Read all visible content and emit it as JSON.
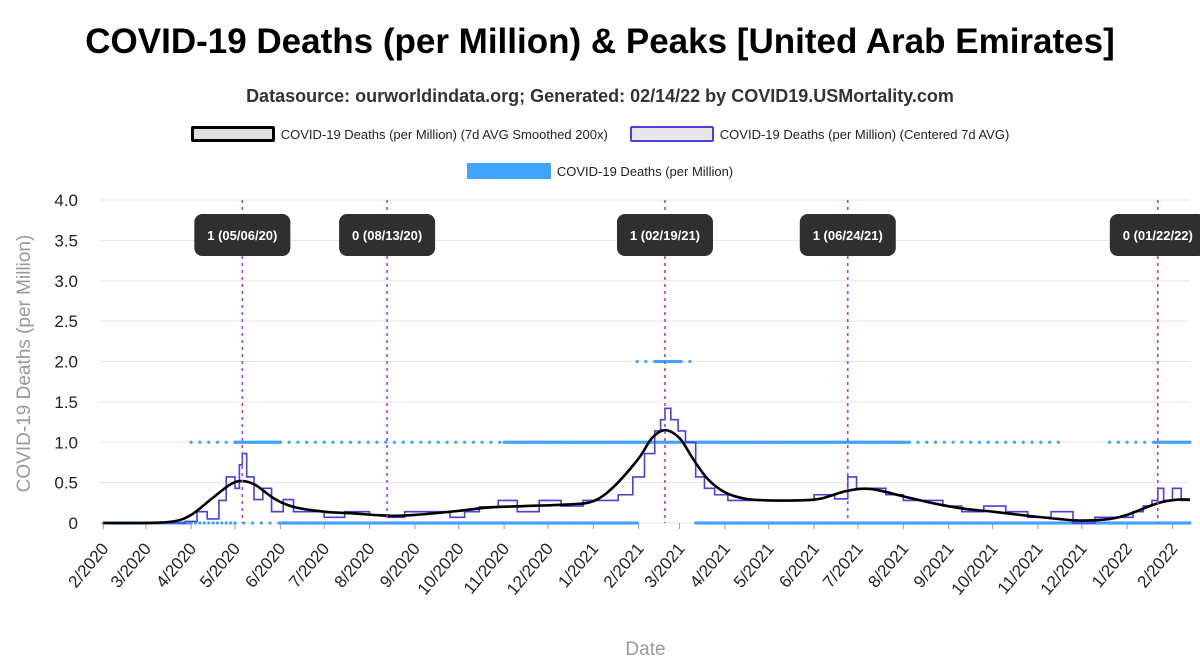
{
  "chart_data": {
    "type": "line",
    "title": "COVID-19 Deaths (per Million) & Peaks [United Arab Emirates]",
    "subtitle": "Datasource: ourworldindata.org; Generated: 02/14/22 by COVID19.USMortality.com",
    "xlabel": "Date",
    "ylabel": "COVID-19 Deaths (per Million)",
    "ylim": [
      0,
      4
    ],
    "yticks": [
      "0",
      "0.5",
      "1.0",
      "1.5",
      "2.0",
      "2.5",
      "3.0",
      "3.5",
      "4.0"
    ],
    "xticks": [
      "2/2020",
      "3/2020",
      "4/2020",
      "5/2020",
      "6/2020",
      "7/2020",
      "8/2020",
      "9/2020",
      "10/2020",
      "11/2020",
      "12/2020",
      "1/2021",
      "2/2021",
      "3/2021",
      "4/2021",
      "5/2021",
      "6/2021",
      "7/2021",
      "8/2021",
      "9/2021",
      "10/2021",
      "11/2021",
      "12/2021",
      "1/2022",
      "2/2022"
    ],
    "xrange": [
      "2020-01-29",
      "2022-02-13"
    ],
    "grid": "horizontal",
    "legend_position": "top",
    "legend": [
      {
        "label": "COVID-19 Deaths (per Million) (7d AVG Smoothed 200x)",
        "style": "line",
        "color": "#000000",
        "fill": "#e0e0e0"
      },
      {
        "label": "COVID-19 Deaths (per Million) (Centered 7d AVG)",
        "style": "line",
        "color": "#4a3fe0",
        "fill": "#e8e8e8"
      },
      {
        "label": "COVID-19 Deaths (per Million)",
        "style": "points",
        "color": "#3fa3ff"
      }
    ],
    "series": [
      {
        "name": "COVID-19 Deaths (per Million) (7d AVG Smoothed 200x)",
        "color": "#000000",
        "x": [
          "2020-02-01",
          "2020-03-01",
          "2020-03-20",
          "2020-04-01",
          "2020-04-15",
          "2020-04-28",
          "2020-05-06",
          "2020-05-15",
          "2020-05-28",
          "2020-06-10",
          "2020-07-01",
          "2020-07-20",
          "2020-08-13",
          "2020-09-01",
          "2020-10-01",
          "2020-10-20",
          "2020-11-15",
          "2020-12-15",
          "2021-01-01",
          "2021-01-15",
          "2021-02-01",
          "2021-02-10",
          "2021-02-19",
          "2021-03-01",
          "2021-03-10",
          "2021-03-20",
          "2021-04-01",
          "2021-04-15",
          "2021-05-01",
          "2021-05-20",
          "2021-06-05",
          "2021-06-24",
          "2021-07-10",
          "2021-08-01",
          "2021-08-20",
          "2021-09-10",
          "2021-10-01",
          "2021-10-25",
          "2021-11-15",
          "2021-12-01",
          "2021-12-20",
          "2022-01-01",
          "2022-01-15",
          "2022-01-25",
          "2022-02-05",
          "2022-02-13"
        ],
        "y": [
          0,
          0,
          0.02,
          0.1,
          0.3,
          0.48,
          0.52,
          0.47,
          0.3,
          0.2,
          0.14,
          0.12,
          0.09,
          0.1,
          0.15,
          0.19,
          0.21,
          0.23,
          0.27,
          0.45,
          0.8,
          1.05,
          1.15,
          1.05,
          0.8,
          0.55,
          0.38,
          0.3,
          0.28,
          0.28,
          0.3,
          0.4,
          0.42,
          0.33,
          0.25,
          0.18,
          0.14,
          0.09,
          0.05,
          0.03,
          0.05,
          0.1,
          0.2,
          0.26,
          0.29,
          0.29
        ]
      },
      {
        "name": "COVID-19 Deaths (per Million) (Centered 7d AVG)",
        "color": "#4a3fe0",
        "x": [
          "2020-02-01",
          "2020-03-15",
          "2020-03-28",
          "2020-04-05",
          "2020-04-12",
          "2020-04-20",
          "2020-04-25",
          "2020-05-01",
          "2020-05-04",
          "2020-05-06",
          "2020-05-09",
          "2020-05-14",
          "2020-05-20",
          "2020-05-26",
          "2020-06-03",
          "2020-06-10",
          "2020-06-20",
          "2020-07-01",
          "2020-07-15",
          "2020-08-01",
          "2020-08-13",
          "2020-08-25",
          "2020-09-10",
          "2020-09-25",
          "2020-10-05",
          "2020-10-15",
          "2020-10-28",
          "2020-11-10",
          "2020-11-25",
          "2020-12-10",
          "2020-12-25",
          "2021-01-05",
          "2021-01-18",
          "2021-01-28",
          "2021-02-05",
          "2021-02-12",
          "2021-02-16",
          "2021-02-19",
          "2021-02-23",
          "2021-02-28",
          "2021-03-05",
          "2021-03-12",
          "2021-03-18",
          "2021-03-25",
          "2021-04-03",
          "2021-04-15",
          "2021-05-01",
          "2021-05-15",
          "2021-06-01",
          "2021-06-15",
          "2021-06-24",
          "2021-06-30",
          "2021-07-08",
          "2021-07-20",
          "2021-08-01",
          "2021-08-15",
          "2021-08-28",
          "2021-09-10",
          "2021-09-25",
          "2021-10-10",
          "2021-10-25",
          "2021-11-10",
          "2021-11-25",
          "2021-12-10",
          "2021-12-25",
          "2022-01-05",
          "2022-01-12",
          "2022-01-18",
          "2022-01-22",
          "2022-01-26",
          "2022-02-01",
          "2022-02-07",
          "2022-02-13"
        ],
        "y": [
          0,
          0,
          0.02,
          0.14,
          0.05,
          0.28,
          0.57,
          0.43,
          0.72,
          0.86,
          0.57,
          0.29,
          0.43,
          0.14,
          0.29,
          0.14,
          0.14,
          0.07,
          0.14,
          0.1,
          0.07,
          0.14,
          0.14,
          0.07,
          0.14,
          0.2,
          0.28,
          0.14,
          0.28,
          0.21,
          0.28,
          0.28,
          0.35,
          0.57,
          0.86,
          1.14,
          1.28,
          1.42,
          1.28,
          1.14,
          1.0,
          0.57,
          0.43,
          0.35,
          0.28,
          0.28,
          0.28,
          0.28,
          0.35,
          0.3,
          0.57,
          0.43,
          0.43,
          0.35,
          0.28,
          0.28,
          0.21,
          0.14,
          0.21,
          0.14,
          0.07,
          0.14,
          0.0,
          0.07,
          0.07,
          0.14,
          0.21,
          0.28,
          0.43,
          0.28,
          0.43,
          0.28,
          0.28
        ]
      },
      {
        "name": "COVID-19 Deaths (per Million)",
        "color": "#3fa3ff",
        "points": [
          {
            "from": "2020-02-01",
            "to": "2020-04-01",
            "y": 0,
            "density": "dense"
          },
          {
            "from": "2020-04-01",
            "to": "2020-05-01",
            "y": 1,
            "density": "sparse"
          },
          {
            "from": "2020-04-01",
            "to": "2020-05-01",
            "y": 0,
            "density": "medium"
          },
          {
            "from": "2020-05-01",
            "to": "2020-06-01",
            "y": 1,
            "density": "dense"
          },
          {
            "from": "2020-05-01",
            "to": "2020-06-01",
            "y": 0,
            "density": "sparse"
          },
          {
            "from": "2020-06-01",
            "to": "2020-11-01",
            "y": 1,
            "density": "sparse"
          },
          {
            "from": "2020-06-01",
            "to": "2021-01-31",
            "y": 0,
            "density": "dense"
          },
          {
            "from": "2020-11-01",
            "to": "2021-01-25",
            "y": 1,
            "density": "dense"
          },
          {
            "from": "2021-01-31",
            "to": "2021-03-09",
            "y": 2,
            "density": "sparse"
          },
          {
            "from": "2021-02-13",
            "to": "2021-03-02",
            "y": 2,
            "density": "dense"
          },
          {
            "from": "2021-01-25",
            "to": "2021-08-05",
            "y": 1,
            "density": "dense"
          },
          {
            "from": "2021-03-12",
            "to": "2022-02-13",
            "y": 0,
            "density": "dense"
          },
          {
            "from": "2021-08-05",
            "to": "2021-11-15",
            "y": 1,
            "density": "sparse"
          },
          {
            "from": "2021-12-20",
            "to": "2022-01-20",
            "y": 1,
            "density": "sparse"
          },
          {
            "from": "2022-01-20",
            "to": "2022-02-13",
            "y": 1,
            "density": "dense"
          }
        ]
      }
    ],
    "peaks": [
      {
        "date": "2020-05-06",
        "label": "1 (05/06/20)"
      },
      {
        "date": "2020-08-13",
        "label": "0 (08/13/20)"
      },
      {
        "date": "2021-02-19",
        "label": "1 (02/19/21)"
      },
      {
        "date": "2021-06-24",
        "label": "1 (06/24/21)"
      },
      {
        "date": "2022-01-22",
        "label": "0 (01/22/22)"
      }
    ],
    "colors": {
      "peak_line": "#a040e0",
      "peak_label_bg": "#2f2f2f",
      "grid": "#e6e6e6",
      "axis_text": "#222222",
      "axis_title": "#999999"
    }
  }
}
